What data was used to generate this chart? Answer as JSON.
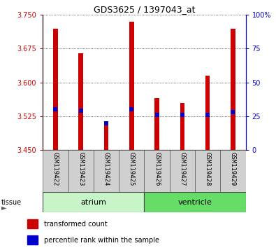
{
  "title": "GDS3625 / 1397043_at",
  "samples": [
    "GSM119422",
    "GSM119423",
    "GSM119424",
    "GSM119425",
    "GSM119426",
    "GSM119427",
    "GSM119428",
    "GSM119429"
  ],
  "transformed_counts": [
    3.72,
    3.665,
    3.505,
    3.735,
    3.565,
    3.555,
    3.615,
    3.72
  ],
  "baseline": 3.45,
  "percentile_ranks": [
    30,
    29,
    20,
    30,
    26,
    26,
    26,
    28
  ],
  "ylim_left": [
    3.45,
    3.75
  ],
  "ylim_right": [
    0,
    100
  ],
  "yticks_left": [
    3.45,
    3.525,
    3.6,
    3.675,
    3.75
  ],
  "yticks_right": [
    0,
    25,
    50,
    75,
    100
  ],
  "atrium_color_light": "#c8f5c8",
  "ventricle_color": "#66dd66",
  "bar_color": "#cc0000",
  "dot_color": "#0000cc",
  "bar_width": 0.18,
  "grid_color": "#333333",
  "label_color_left": "#cc0000",
  "label_color_right": "#0000cc",
  "sample_box_color": "#d0d0d0",
  "title_fontsize": 9,
  "tick_fontsize": 7,
  "label_fontsize": 6.5,
  "tissue_fontsize": 8,
  "legend_fontsize": 7
}
